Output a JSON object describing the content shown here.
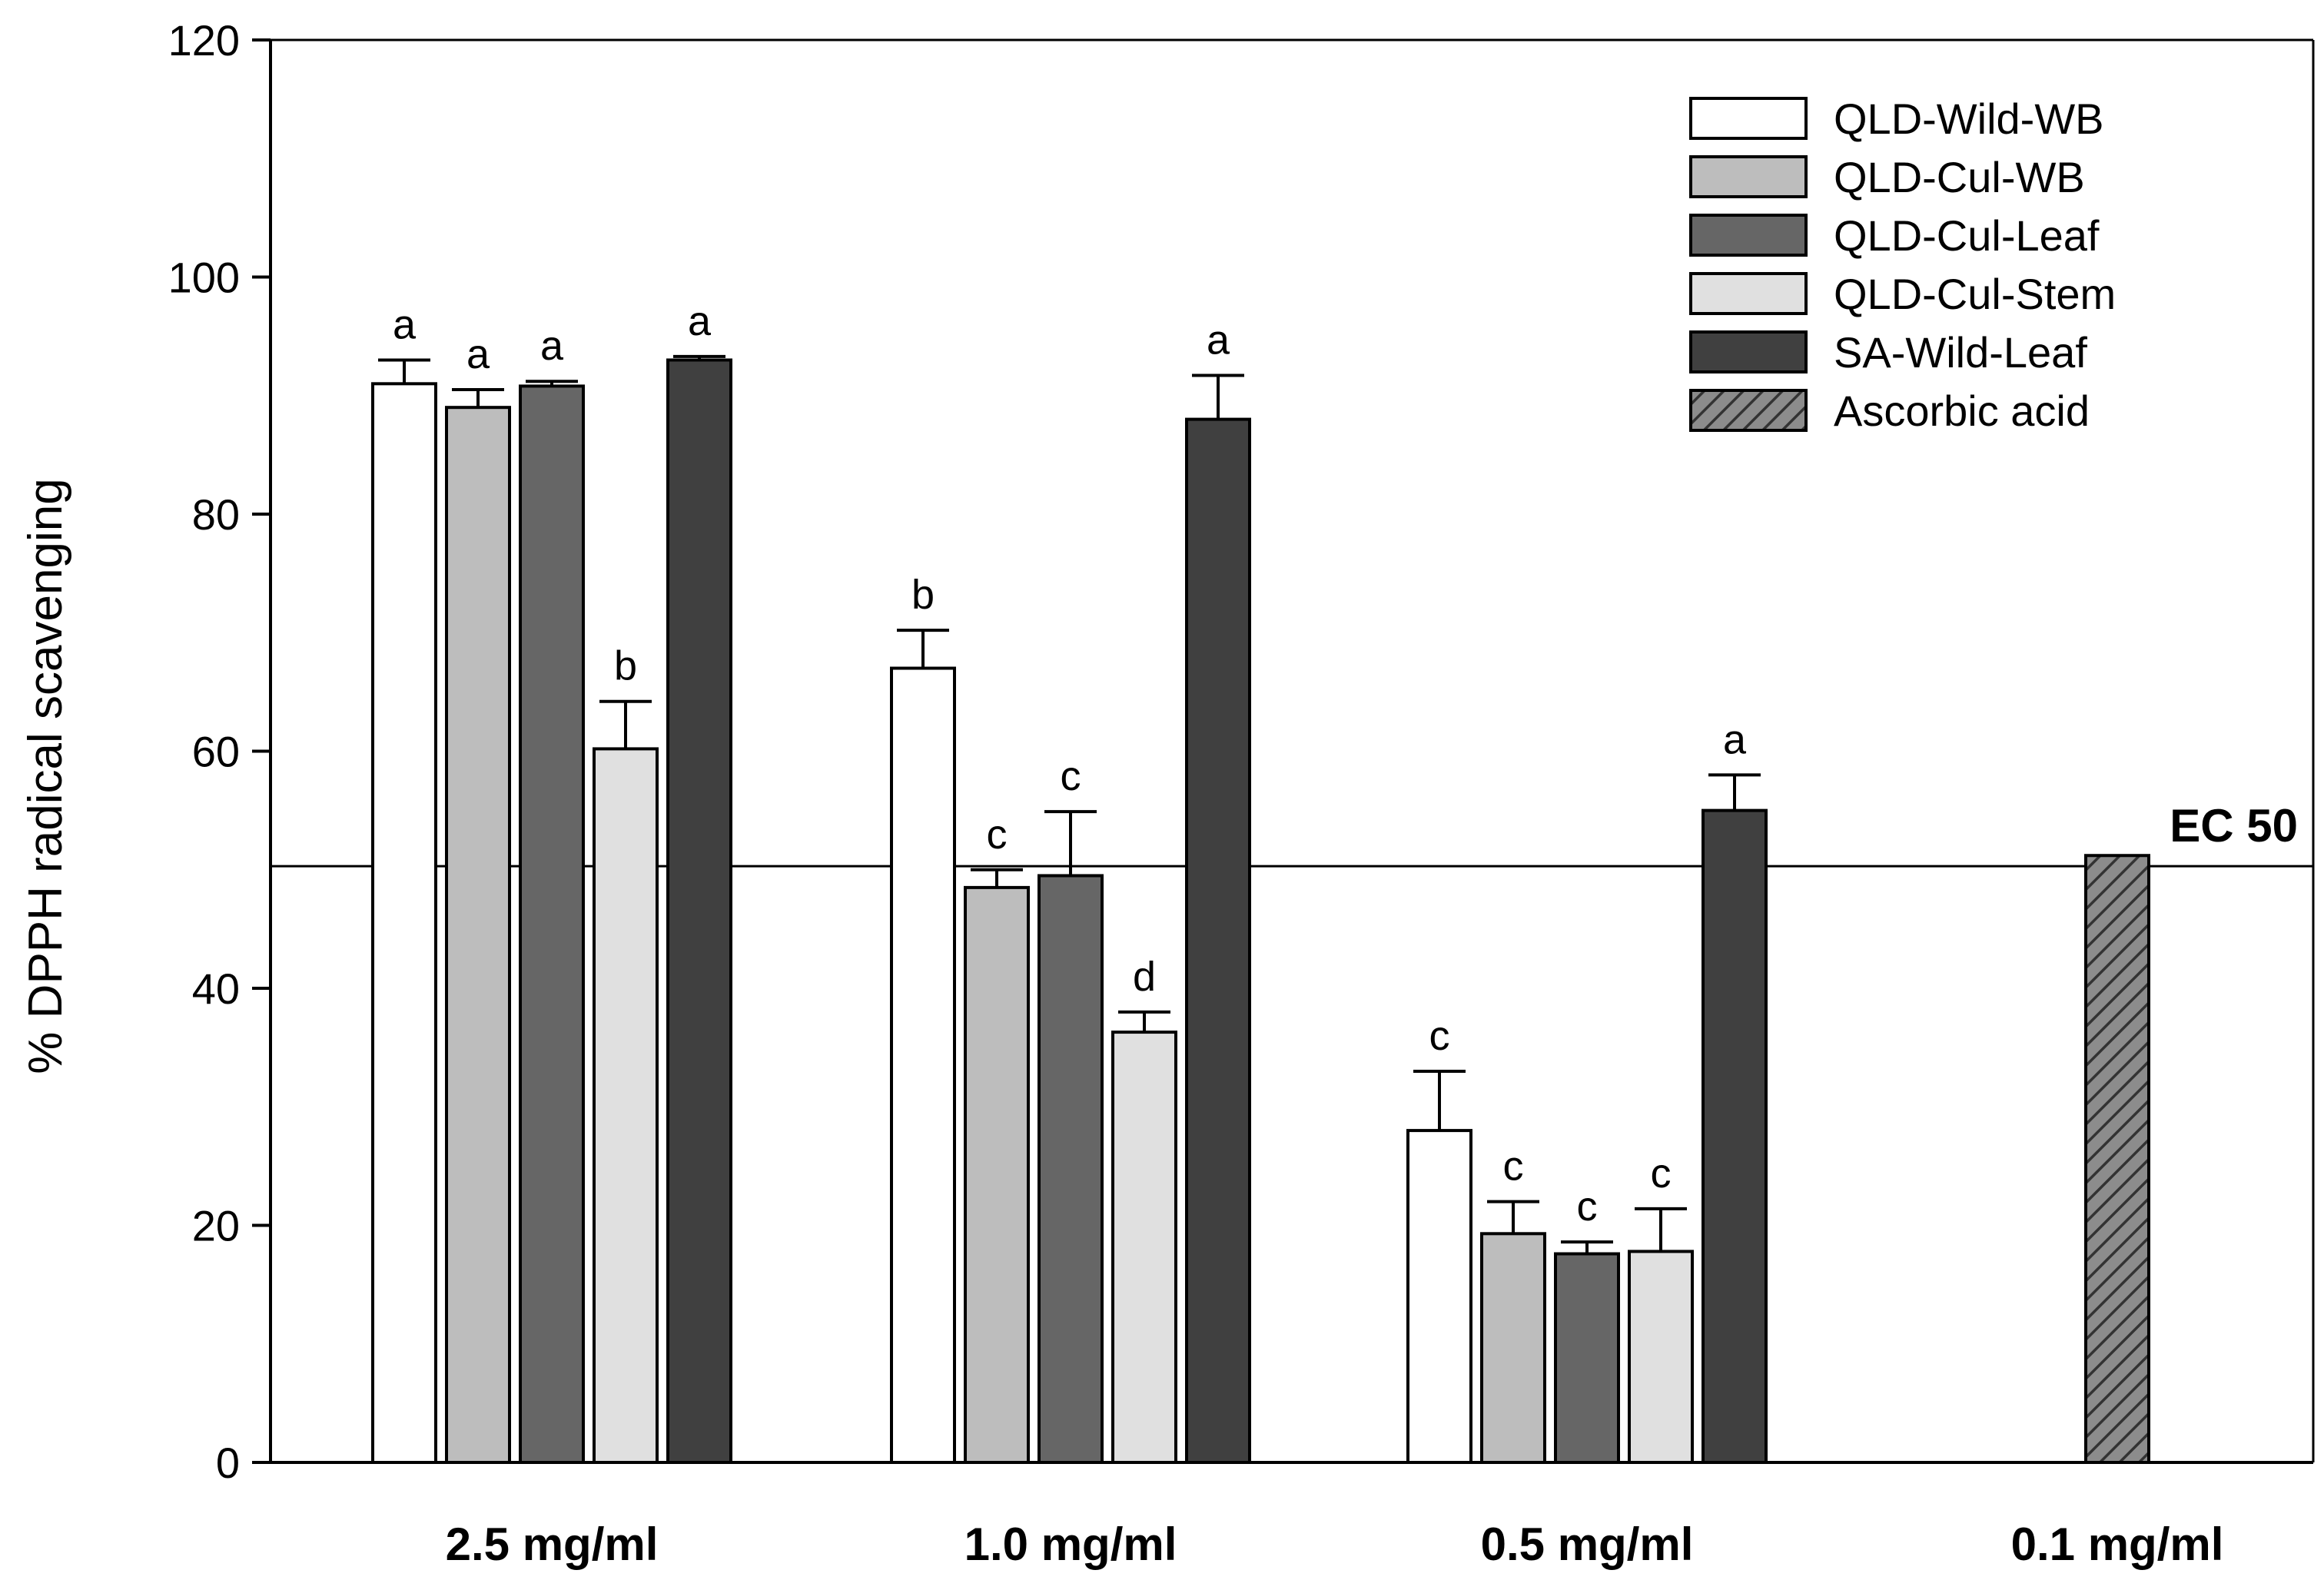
{
  "chart_data": {
    "type": "bar",
    "ylabel": "% DPPH radical scavenging",
    "xlabel": "",
    "title": "",
    "ylim": [
      0,
      120
    ],
    "yticks": [
      0,
      20,
      40,
      60,
      80,
      100,
      120
    ],
    "categories": [
      "2.5 mg/ml",
      "1.0 mg/ml",
      "0.5 mg/ml",
      "0.1 mg/ml"
    ],
    "series": [
      {
        "name": "QLD-Wild-WB",
        "color": "#ffffff",
        "pattern": "none",
        "values": [
          91.0,
          67.0,
          28.0,
          null
        ],
        "errors": [
          2.0,
          3.2,
          5.0,
          null
        ],
        "labels": [
          "a",
          "b",
          "c",
          ""
        ]
      },
      {
        "name": "QLD-Cul-WB",
        "color": "#bdbdbd",
        "pattern": "none",
        "values": [
          89.0,
          48.5,
          19.3,
          null
        ],
        "errors": [
          1.5,
          1.5,
          2.7,
          null
        ],
        "labels": [
          "a",
          "c",
          "c",
          ""
        ]
      },
      {
        "name": "QLD-Cul-Leaf",
        "color": "#666666",
        "pattern": "none",
        "values": [
          90.8,
          49.5,
          17.6,
          null
        ],
        "errors": [
          0.4,
          5.4,
          1.0,
          null
        ],
        "labels": [
          "a",
          "c",
          "c",
          ""
        ]
      },
      {
        "name": "QLD-Cul-Stem",
        "color": "#e0e0e0",
        "pattern": "none",
        "values": [
          60.2,
          36.3,
          17.8,
          null
        ],
        "errors": [
          4.0,
          1.7,
          3.6,
          null
        ],
        "labels": [
          "b",
          "d",
          "c",
          ""
        ]
      },
      {
        "name": "SA-Wild-Leaf",
        "color": "#404040",
        "pattern": "none",
        "values": [
          93.0,
          88.0,
          55.0,
          null
        ],
        "errors": [
          0.3,
          3.7,
          3.0,
          null
        ],
        "labels": [
          "a",
          "a",
          "a",
          ""
        ]
      },
      {
        "name": "Ascorbic acid",
        "color": "#8c8c8c",
        "pattern": "hatch",
        "values": [
          null,
          null,
          null,
          51.2
        ],
        "errors": [
          null,
          null,
          null,
          null
        ],
        "labels": [
          "",
          "",
          "",
          ""
        ]
      }
    ],
    "reference_line": {
      "label": "EC 50",
      "value": 50.3
    },
    "legend": "top-right",
    "grid": false
  }
}
